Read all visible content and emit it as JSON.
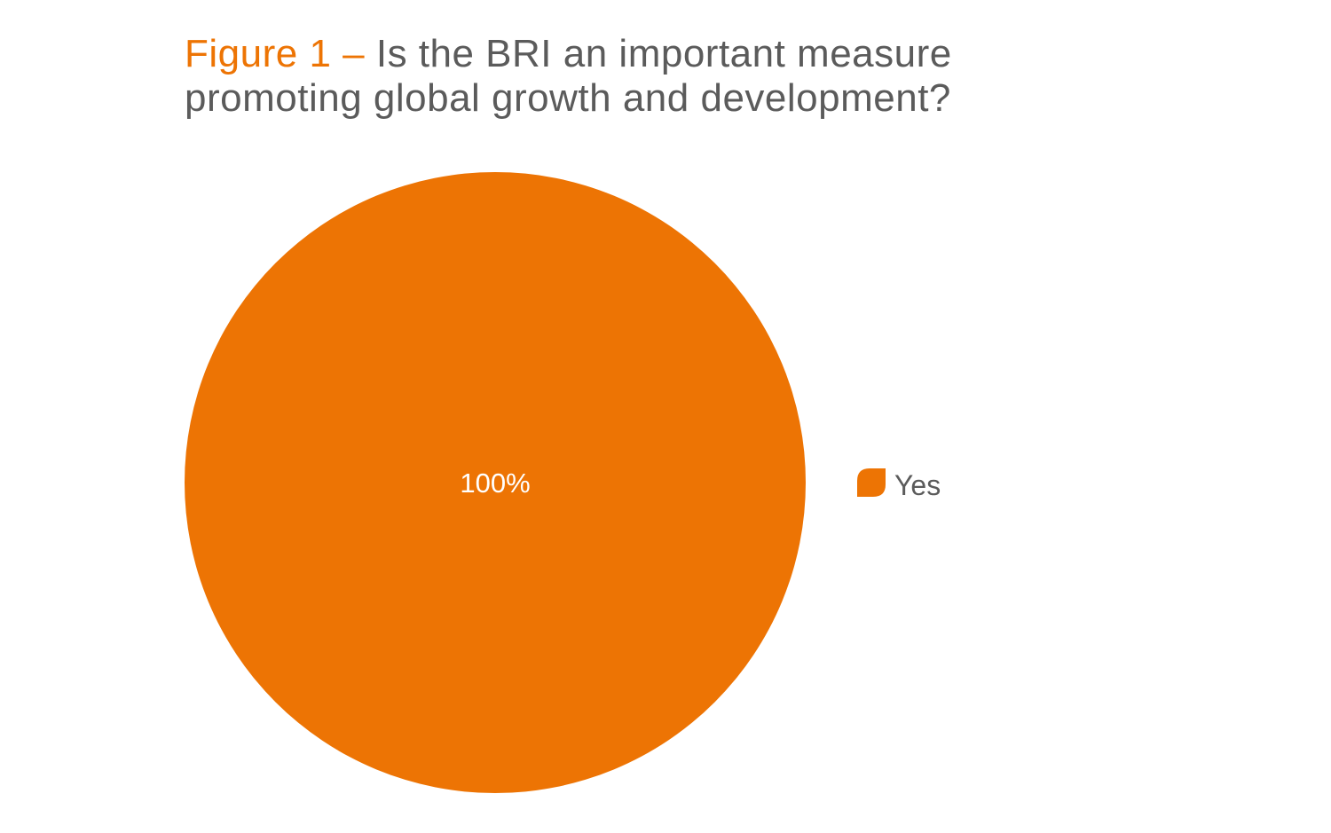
{
  "figure": {
    "label": "Figure 1",
    "separator": " – ",
    "question_line1": "Is the BRI an important measure",
    "question_line2": "promoting global growth and development?"
  },
  "chart_data": {
    "type": "pie",
    "title": "Figure 1 – Is the BRI an important measure promoting global growth and development?",
    "categories": [
      "Yes"
    ],
    "values": [
      100
    ],
    "data_labels": [
      "100%"
    ],
    "colors": [
      "#ed7404"
    ],
    "legend": {
      "placement": "right",
      "entries": [
        "Yes"
      ]
    }
  },
  "colors": {
    "accent": "#ed7404",
    "title_text": "#5b5b5b",
    "data_label_text": "#ffffff"
  }
}
